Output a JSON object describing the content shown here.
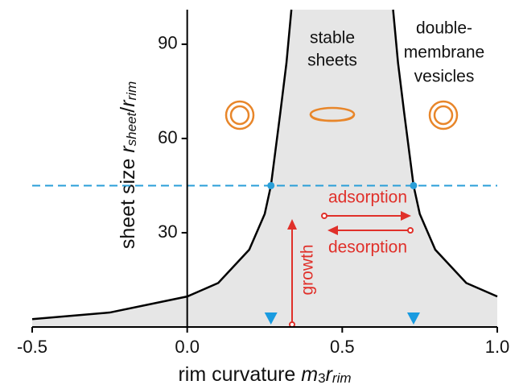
{
  "chart_data": {
    "type": "line",
    "xlabel_parts": [
      "rim curvature ",
      "m",
      "3",
      "r",
      "rim"
    ],
    "ylabel_parts": [
      "sheet size ",
      "r",
      "sheet",
      "/",
      "r",
      "rim"
    ],
    "xlim": [
      -0.5,
      1.0
    ],
    "ylim": [
      0,
      101
    ],
    "xticks": [
      -0.5,
      {
        "value": 0,
        "label": "0.0"
      },
      0.5,
      {
        "value": 1,
        "label": "1.0"
      }
    ],
    "yticks": [
      30,
      60,
      90
    ],
    "series": [
      {
        "color": "#000000",
        "x": [
          -0.5,
          -0.25,
          0,
          0.1,
          0.2,
          0.25,
          0.27,
          0.3,
          0.32,
          0.336
        ],
        "values": [
          2.5,
          4.6,
          9.7,
          14,
          24.6,
          36,
          45,
          68,
          84,
          101
        ]
      },
      {
        "color": "#000000",
        "x": [
          0.664,
          0.68,
          0.7,
          0.73,
          0.75,
          0.8,
          0.9,
          1.0
        ],
        "values": [
          101,
          84,
          68,
          45,
          36,
          24.6,
          14,
          9.7
        ]
      }
    ],
    "fill_color": "#e6e6e6",
    "hline": 45,
    "hline_color": "#2a9fd8",
    "crossings": [
      0.27,
      0.73
    ],
    "annotations": [
      "stable",
      "sheets",
      "double-",
      "membrane",
      "vesicles",
      "adsorption",
      "desorption",
      "growth"
    ]
  }
}
